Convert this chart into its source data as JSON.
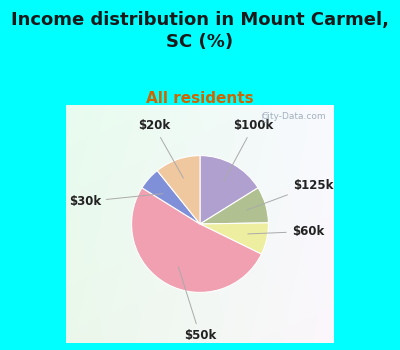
{
  "title": "Income distribution in Mount Carmel,\nSC (%)",
  "subtitle": "All residents",
  "title_fontsize": 13,
  "subtitle_fontsize": 11,
  "title_color": "#1a1a1a",
  "subtitle_color": "#cc6600",
  "bg_cyan": "#00FFFF",
  "chart_bg": "#e0f0e8",
  "labels": [
    "$100k",
    "$125k",
    "$60k",
    "$50k",
    "$30k",
    "$20k"
  ],
  "values": [
    15,
    8,
    7,
    48,
    5,
    10
  ],
  "colors": [
    "#b0a0d0",
    "#b0c090",
    "#eeeea0",
    "#f0a0b0",
    "#8090d8",
    "#f0c8a0"
  ],
  "label_fontsize": 8.5,
  "watermark": "City-Data.com"
}
